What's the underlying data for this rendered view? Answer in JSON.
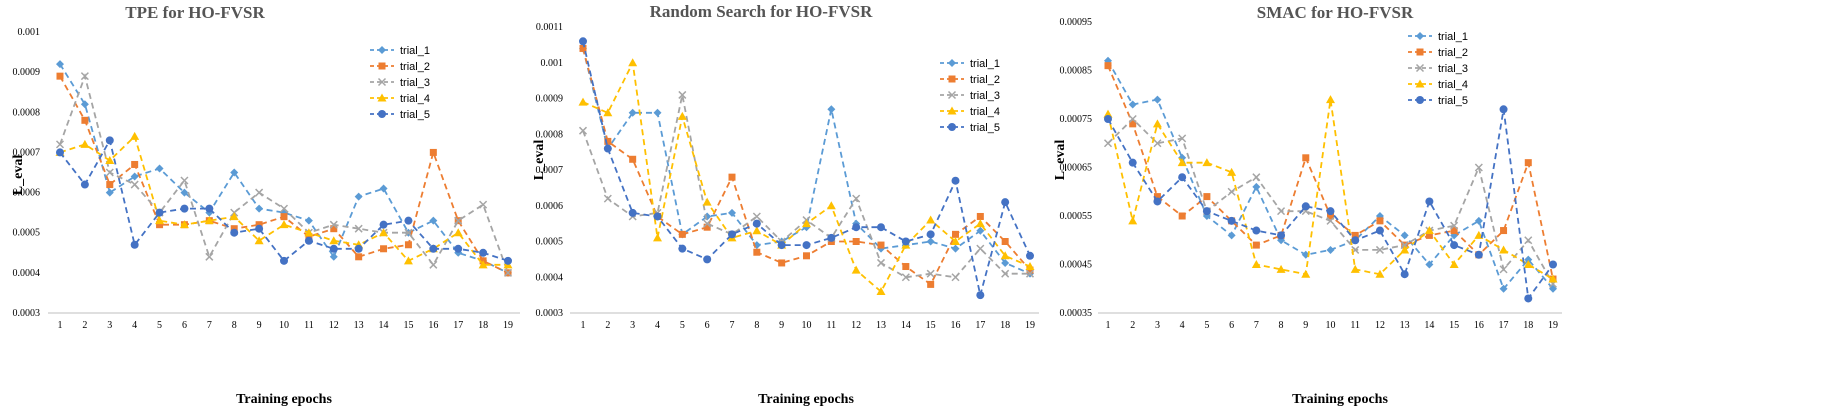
{
  "chart_data": [
    {
      "type": "line",
      "title": "TPE for HO-FVSR",
      "xlabel": "Training epochs",
      "ylabel": "L_eval",
      "x": [
        1,
        2,
        3,
        4,
        5,
        6,
        7,
        8,
        9,
        10,
        11,
        12,
        13,
        14,
        15,
        16,
        17,
        18,
        19
      ],
      "ylim": [
        0.0003,
        0.001
      ],
      "yticks": [
        0.0003,
        0.0004,
        0.0005,
        0.0006,
        0.0007,
        0.0008,
        0.0009,
        0.001
      ],
      "ytick_labels": [
        "0.0003",
        "0.0004",
        "0.0005",
        "0.0006",
        "0.0007",
        "0.0008",
        "0.0009",
        "0.001"
      ],
      "legend_position": "top-right",
      "series": [
        {
          "name": "trial_1",
          "color": "#5b9bd5",
          "marker": "diamond",
          "values": [
            0.00092,
            0.00082,
            0.0006,
            0.00064,
            0.00066,
            0.0006,
            0.00055,
            0.00065,
            0.00056,
            0.00055,
            0.00053,
            0.00044,
            0.00059,
            0.00061,
            0.0005,
            0.00053,
            0.00045,
            0.00043,
            0.0004
          ]
        },
        {
          "name": "trial_2",
          "color": "#ed7d31",
          "marker": "square",
          "values": [
            0.00089,
            0.00078,
            0.00062,
            0.00067,
            0.00052,
            0.00052,
            0.00053,
            0.00051,
            0.00052,
            0.00054,
            0.00049,
            0.00051,
            0.00044,
            0.00046,
            0.00047,
            0.0007,
            0.00053,
            0.00043,
            0.0004
          ]
        },
        {
          "name": "trial_3",
          "color": "#a5a5a5",
          "marker": "x",
          "values": [
            0.00072,
            0.00089,
            0.00065,
            0.00062,
            0.00055,
            0.00063,
            0.00044,
            0.00055,
            0.0006,
            0.00056,
            0.0005,
            0.00052,
            0.00051,
            0.0005,
            0.0005,
            0.00042,
            0.00053,
            0.00057,
            0.0004
          ]
        },
        {
          "name": "trial_4",
          "color": "#ffc000",
          "marker": "triangle",
          "values": [
            0.0007,
            0.00072,
            0.00068,
            0.00074,
            0.00053,
            0.00052,
            0.00053,
            0.00054,
            0.00048,
            0.00052,
            0.0005,
            0.00048,
            0.00047,
            0.0005,
            0.00043,
            0.00046,
            0.0005,
            0.00042,
            0.00042
          ]
        },
        {
          "name": "trial_5",
          "color": "#4472c4",
          "marker": "circle",
          "values": [
            0.0007,
            0.00062,
            0.00073,
            0.00047,
            0.00055,
            0.00056,
            0.00056,
            0.0005,
            0.00051,
            0.00043,
            0.00048,
            0.00046,
            0.00046,
            0.00052,
            0.00053,
            0.00046,
            0.00046,
            0.00045,
            0.00043
          ]
        }
      ]
    },
    {
      "type": "line",
      "title": "Random Search for HO-FVSR",
      "xlabel": "Training epochs",
      "ylabel": "L_eval",
      "x": [
        1,
        2,
        3,
        4,
        5,
        6,
        7,
        8,
        9,
        10,
        11,
        12,
        13,
        14,
        15,
        16,
        17,
        18,
        19
      ],
      "ylim": [
        0.0003,
        0.0011
      ],
      "yticks": [
        0.0003,
        0.0004,
        0.0005,
        0.0006,
        0.0007,
        0.0008,
        0.0009,
        0.001,
        0.0011
      ],
      "ytick_labels": [
        "0.0003",
        "0.0004",
        "0.0005",
        "0.0006",
        "0.0007",
        "0.0008",
        "0.0009",
        "0.001",
        "0.0011"
      ],
      "legend_position": "top-right",
      "series": [
        {
          "name": "trial_1",
          "color": "#5b9bd5",
          "marker": "diamond",
          "values": [
            0.00104,
            0.00076,
            0.00086,
            0.00086,
            0.00052,
            0.00057,
            0.00058,
            0.00049,
            0.0005,
            0.00054,
            0.00087,
            0.00055,
            0.00048,
            0.00049,
            0.0005,
            0.00048,
            0.00053,
            0.00044,
            0.00041
          ]
        },
        {
          "name": "trial_2",
          "color": "#ed7d31",
          "marker": "square",
          "values": [
            0.00104,
            0.00078,
            0.00073,
            0.00057,
            0.00052,
            0.00054,
            0.00068,
            0.00047,
            0.00044,
            0.00046,
            0.0005,
            0.0005,
            0.00049,
            0.00043,
            0.00038,
            0.00052,
            0.00057,
            0.0005,
            0.00042
          ]
        },
        {
          "name": "trial_3",
          "color": "#a5a5a5",
          "marker": "x",
          "values": [
            0.00081,
            0.00062,
            0.00057,
            0.00058,
            0.00091,
            0.00055,
            0.00052,
            0.00057,
            0.0005,
            0.00056,
            0.00051,
            0.00062,
            0.00044,
            0.0004,
            0.00041,
            0.0004,
            0.00048,
            0.00041,
            0.00041
          ]
        },
        {
          "name": "trial_4",
          "color": "#ffc000",
          "marker": "triangle",
          "values": [
            0.00089,
            0.00086,
            0.001,
            0.00051,
            0.00085,
            0.00061,
            0.00051,
            0.00053,
            0.00049,
            0.00055,
            0.0006,
            0.00042,
            0.00036,
            0.00049,
            0.00056,
            0.0005,
            0.00055,
            0.00046,
            0.00043
          ]
        },
        {
          "name": "trial_5",
          "color": "#4472c4",
          "marker": "circle",
          "values": [
            0.00106,
            0.00076,
            0.00058,
            0.00057,
            0.00048,
            0.00045,
            0.00052,
            0.00055,
            0.00049,
            0.00049,
            0.00051,
            0.00054,
            0.00054,
            0.0005,
            0.00052,
            0.00067,
            0.00035,
            0.00061,
            0.00046
          ]
        }
      ]
    },
    {
      "type": "line",
      "title": "SMAC for HO-FVSR",
      "xlabel": "Training epochs",
      "ylabel": "L_eval",
      "x": [
        1,
        2,
        3,
        4,
        5,
        6,
        7,
        8,
        9,
        10,
        11,
        12,
        13,
        14,
        15,
        16,
        17,
        18,
        19
      ],
      "ylim": [
        0.00035,
        0.00095
      ],
      "yticks": [
        0.00035,
        0.00045,
        0.00055,
        0.00065,
        0.00075,
        0.00085,
        0.00095
      ],
      "ytick_labels": [
        "0.00035",
        "0.00045",
        "0.00055",
        "0.00065",
        "0.00075",
        "0.00085",
        "0.00095"
      ],
      "legend_position": "top-right",
      "series": [
        {
          "name": "trial_1",
          "color": "#5b9bd5",
          "marker": "diamond",
          "values": [
            0.00087,
            0.00078,
            0.00079,
            0.00067,
            0.00055,
            0.00051,
            0.00061,
            0.0005,
            0.00047,
            0.00048,
            0.0005,
            0.00055,
            0.00051,
            0.00045,
            0.00051,
            0.00054,
            0.0004,
            0.00046,
            0.0004
          ]
        },
        {
          "name": "trial_2",
          "color": "#ed7d31",
          "marker": "square",
          "values": [
            0.00086,
            0.00074,
            0.00059,
            0.00055,
            0.00059,
            0.00054,
            0.00049,
            0.00051,
            0.00067,
            0.00055,
            0.00051,
            0.00054,
            0.00049,
            0.00051,
            0.00052,
            0.00047,
            0.00052,
            0.00066,
            0.00042
          ]
        },
        {
          "name": "trial_3",
          "color": "#a5a5a5",
          "marker": "x",
          "values": [
            0.0007,
            0.00075,
            0.0007,
            0.00071,
            0.00056,
            0.0006,
            0.00063,
            0.00056,
            0.00056,
            0.00054,
            0.00048,
            0.00048,
            0.00049,
            0.00052,
            0.00053,
            0.00065,
            0.00044,
            0.0005,
            0.00041
          ]
        },
        {
          "name": "trial_4",
          "color": "#ffc000",
          "marker": "triangle",
          "values": [
            0.00076,
            0.00054,
            0.00074,
            0.00066,
            0.00066,
            0.00064,
            0.00045,
            0.00044,
            0.00043,
            0.00079,
            0.00044,
            0.00043,
            0.00048,
            0.00052,
            0.00045,
            0.00051,
            0.00048,
            0.00045,
            0.00042
          ]
        },
        {
          "name": "trial_5",
          "color": "#4472c4",
          "marker": "circle",
          "values": [
            0.00075,
            0.00066,
            0.00058,
            0.00063,
            0.00056,
            0.00054,
            0.00052,
            0.00051,
            0.00057,
            0.00056,
            0.0005,
            0.00052,
            0.00043,
            0.00058,
            0.00049,
            0.00047,
            0.00077,
            0.00038,
            0.00045
          ]
        }
      ]
    }
  ]
}
